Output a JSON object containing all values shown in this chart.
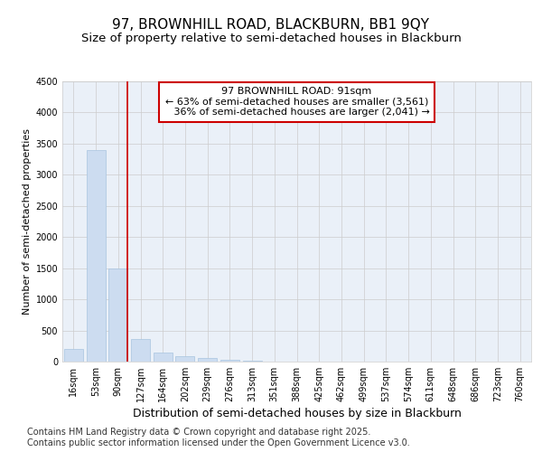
{
  "title_line1": "97, BROWNHILL ROAD, BLACKBURN, BB1 9QY",
  "title_line2": "Size of property relative to semi-detached houses in Blackburn",
  "xlabel": "Distribution of semi-detached houses by size in Blackburn",
  "ylabel": "Number of semi-detached properties",
  "categories": [
    "16sqm",
    "53sqm",
    "90sqm",
    "127sqm",
    "164sqm",
    "202sqm",
    "239sqm",
    "276sqm",
    "313sqm",
    "351sqm",
    "388sqm",
    "425sqm",
    "462sqm",
    "499sqm",
    "537sqm",
    "574sqm",
    "611sqm",
    "648sqm",
    "686sqm",
    "723sqm",
    "760sqm"
  ],
  "values": [
    200,
    3400,
    1500,
    370,
    140,
    90,
    55,
    30,
    10,
    0,
    0,
    0,
    0,
    0,
    0,
    0,
    0,
    0,
    0,
    0,
    0
  ],
  "bar_color": "#ccdcf0",
  "bar_edge_color": "#a8c4e0",
  "grid_color": "#cccccc",
  "background_color": "#eaf0f8",
  "annotation_line1": "97 BROWNHILL ROAD: 91sqm",
  "annotation_line2": "← 63% of semi-detached houses are smaller (3,561)",
  "annotation_line3": "   36% of semi-detached houses are larger (2,041) →",
  "vline_x_index": 2,
  "vline_color": "#cc0000",
  "ylim": [
    0,
    4500
  ],
  "yticks": [
    0,
    500,
    1000,
    1500,
    2000,
    2500,
    3000,
    3500,
    4000,
    4500
  ],
  "footer_text": "Contains HM Land Registry data © Crown copyright and database right 2025.\nContains public sector information licensed under the Open Government Licence v3.0.",
  "title_fontsize": 11,
  "subtitle_fontsize": 9.5,
  "xlabel_fontsize": 9,
  "ylabel_fontsize": 8,
  "tick_fontsize": 7,
  "annotation_fontsize": 8,
  "footer_fontsize": 7
}
